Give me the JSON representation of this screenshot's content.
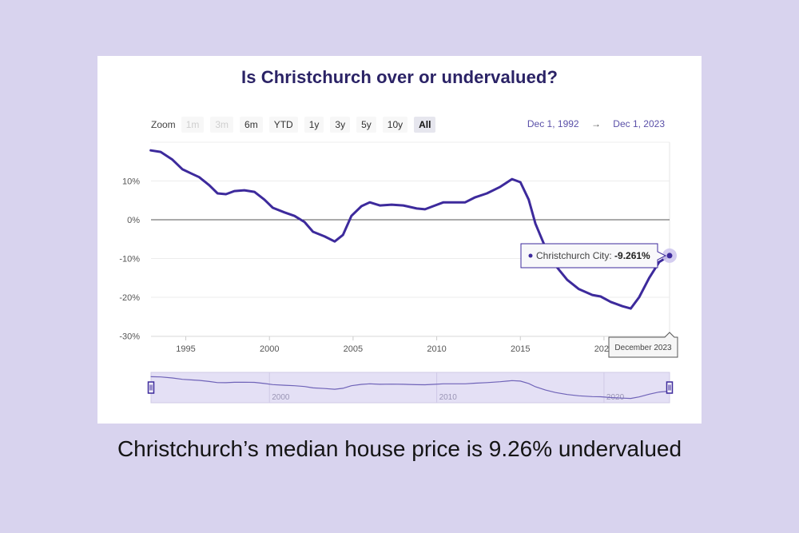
{
  "page": {
    "background": "#d8d3ee",
    "caption": "Christchurch’s median house price is 9.26% undervalued"
  },
  "card": {
    "title": "Is Christchurch over or undervalued?"
  },
  "zoom_bar": {
    "label": "Zoom",
    "buttons": [
      {
        "label": "1m",
        "state": "disabled"
      },
      {
        "label": "3m",
        "state": "disabled"
      },
      {
        "label": "6m",
        "state": "normal"
      },
      {
        "label": "YTD",
        "state": "normal"
      },
      {
        "label": "1y",
        "state": "normal"
      },
      {
        "label": "3y",
        "state": "normal"
      },
      {
        "label": "5y",
        "state": "normal"
      },
      {
        "label": "10y",
        "state": "normal"
      },
      {
        "label": "All",
        "state": "active"
      }
    ]
  },
  "date_range": {
    "from": "Dec 1, 1992",
    "arrow": "→",
    "to": "Dec 1, 2023"
  },
  "tooltip": {
    "series_label": "Christchurch City:",
    "value": "-9.261%",
    "x_label": "December 2023"
  },
  "colors": {
    "line": "#3d2a9c",
    "accent_text": "#5a50a8",
    "title": "#2b2366",
    "navigator_fill": "#e4e0f5"
  },
  "navigator": {
    "labels": [
      "2000",
      "2010",
      "2020"
    ]
  },
  "chart_data": {
    "type": "line",
    "title": "Is Christchurch over or undervalued?",
    "xlabel": "",
    "ylabel": "",
    "x_ticks": [
      "1995",
      "2000",
      "2005",
      "2010",
      "2015",
      "2020"
    ],
    "y_ticks": [
      "10%",
      "0%",
      "-10%",
      "-20%",
      "-30%"
    ],
    "ylim": [
      -30,
      20
    ],
    "xlim": [
      1992.92,
      2023.92
    ],
    "grid": true,
    "legend": "none",
    "series": [
      {
        "name": "Christchurch City",
        "x": [
          1992.9,
          1993.5,
          1994.2,
          1994.8,
          1995.4,
          1995.8,
          1996.4,
          1996.9,
          1997.4,
          1997.9,
          1998.5,
          1999.1,
          1999.7,
          2000.2,
          2000.9,
          2001.5,
          2002.1,
          2002.6,
          2003.3,
          2003.9,
          2004.4,
          2004.9,
          2005.5,
          2006.0,
          2006.6,
          2007.3,
          2008.0,
          2008.8,
          2009.3,
          2009.9,
          2010.4,
          2011.0,
          2011.7,
          2012.3,
          2013.0,
          2013.8,
          2014.5,
          2015.0,
          2015.5,
          2015.9,
          2016.5,
          2017.1,
          2017.8,
          2018.5,
          2019.3,
          2019.8,
          2020.4,
          2021.1,
          2021.6,
          2022.1,
          2022.7,
          2023.3,
          2023.92
        ],
        "values": [
          17.9,
          17.5,
          15.5,
          13.0,
          11.8,
          11.0,
          8.9,
          6.8,
          6.6,
          7.4,
          7.6,
          7.2,
          5.2,
          3.1,
          1.9,
          1.0,
          -0.6,
          -3.1,
          -4.3,
          -5.6,
          -3.9,
          1.0,
          3.5,
          4.5,
          3.7,
          3.9,
          3.7,
          2.9,
          2.7,
          3.7,
          4.5,
          4.5,
          4.5,
          5.8,
          6.8,
          8.5,
          10.5,
          9.7,
          5.2,
          -1.0,
          -7.2,
          -11.8,
          -15.5,
          -17.9,
          -19.4,
          -19.8,
          -21.2,
          -22.3,
          -22.9,
          -20.0,
          -15.0,
          -10.9,
          -9.261
        ]
      }
    ],
    "annotations": [
      {
        "type": "tooltip",
        "text": "Christchurch City: -9.261%",
        "x": 2023.92,
        "y": -9.261
      },
      {
        "type": "x-crosshair-label",
        "text": "December 2023"
      }
    ]
  }
}
